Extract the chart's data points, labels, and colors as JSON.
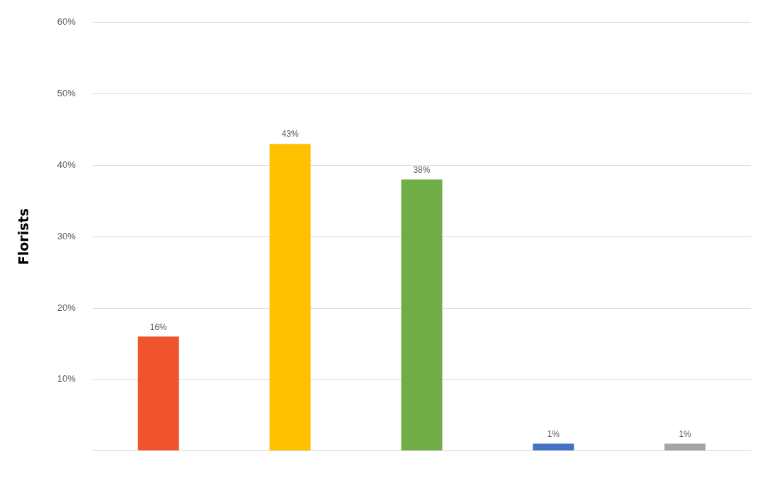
{
  "chart_data": {
    "type": "bar",
    "ylabel": "Florists",
    "categories": [
      null,
      null,
      null,
      null,
      null
    ],
    "values": [
      16,
      43,
      38,
      1,
      1
    ],
    "colors": [
      "#f0542c",
      "#ffc000",
      "#70ad47",
      "#4472c4",
      "#a5a5a5"
    ],
    "value_labels": [
      "16%",
      "43%",
      "38%",
      "1%",
      "1%"
    ],
    "ylim": [
      0,
      60
    ],
    "yticks": [
      {
        "value": 0,
        "label": null
      },
      {
        "value": 10,
        "label": "10%"
      },
      {
        "value": 20,
        "label": "20%"
      },
      {
        "value": 30,
        "label": "30%"
      },
      {
        "value": 40,
        "label": "40%"
      },
      {
        "value": 50,
        "label": "50%"
      },
      {
        "value": 60,
        "label": "60%"
      }
    ],
    "grid": "y",
    "legend": false
  }
}
